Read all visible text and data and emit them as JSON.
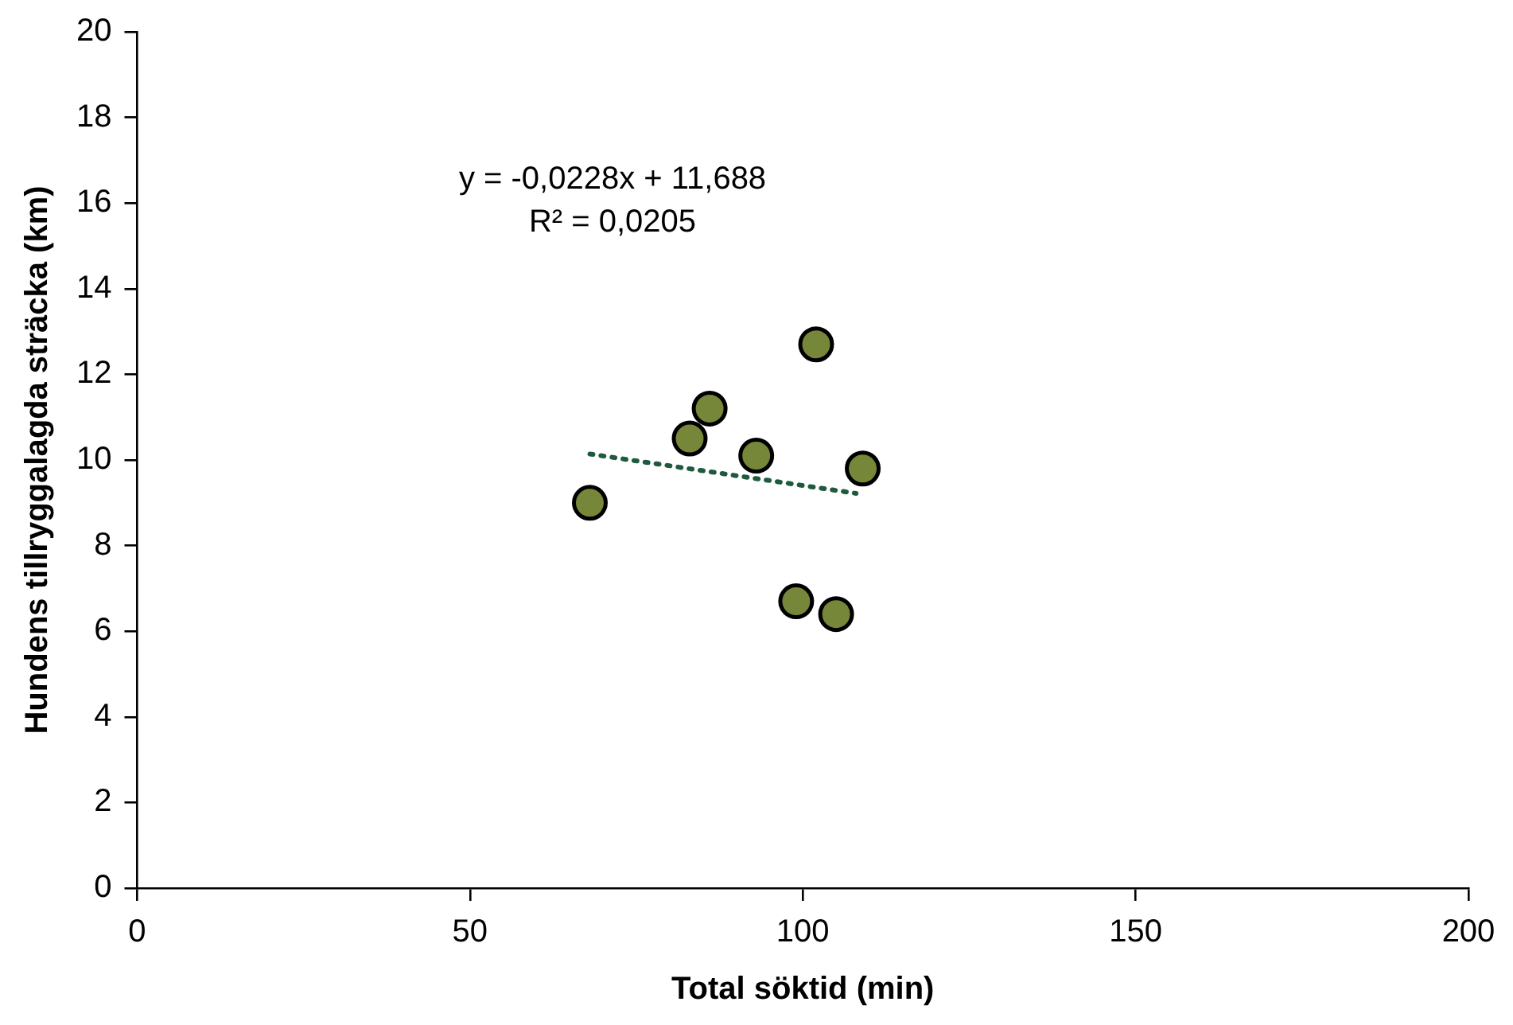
{
  "chart_data": {
    "type": "scatter",
    "xlabel": "Total söktid (min)",
    "ylabel": "Hundens tillryggalagda sträcka (km)",
    "xlim": [
      0,
      200
    ],
    "xticks": [
      0,
      50,
      100,
      150,
      200
    ],
    "ylim": [
      0,
      20
    ],
    "yticks": [
      0,
      2,
      4,
      6,
      8,
      10,
      12,
      14,
      16,
      18,
      20
    ],
    "grid": false,
    "legend": false,
    "marker": "circle",
    "series": [
      {
        "color": "#77873a",
        "x": [
          68,
          83,
          86,
          93,
          102,
          99,
          105,
          109
        ],
        "values": [
          9.0,
          10.5,
          11.2,
          10.1,
          12.7,
          6.7,
          6.4,
          9.8
        ]
      },
      {
        "type": "line",
        "color": "#1f5a3f",
        "line_style": "dotted",
        "marker": "none",
        "x": [
          68,
          108
        ],
        "values": [
          10.14,
          9.22
        ]
      }
    ],
    "annotations": [
      "y = -0,0228x + 11,688",
      "R² = 0,0205"
    ]
  }
}
